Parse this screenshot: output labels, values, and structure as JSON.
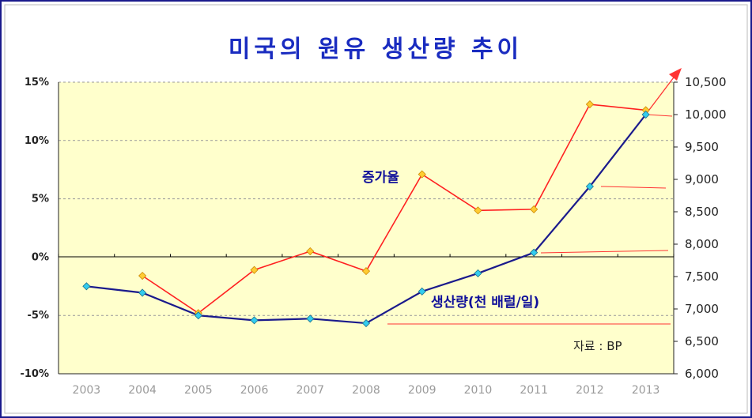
{
  "chart_data": {
    "type": "line",
    "title": "미국의 원유 생산량 추이",
    "categories": [
      "2003",
      "2004",
      "2005",
      "2006",
      "2007",
      "2008",
      "2009",
      "2010",
      "2011",
      "2012",
      "2013"
    ],
    "y_left": {
      "ticks": [
        "15%",
        "10%",
        "5%",
        "0%",
        "-5%",
        "-10%"
      ],
      "ylim": [
        -10,
        15
      ]
    },
    "y_right": {
      "ticks": [
        "10,500",
        "10,000",
        "9,500",
        "9,000",
        "8,500",
        "8,000",
        "7,500",
        "7,000",
        "6,500",
        "6,000"
      ],
      "ylim": [
        6000,
        10500
      ]
    },
    "series": [
      {
        "name": "증가율",
        "axis": "left",
        "color": "#ff2020",
        "marker_color": "#ffcc33",
        "values": [
          null,
          -1.6,
          -4.8,
          -1.1,
          0.5,
          -1.2,
          7.1,
          4.0,
          4.1,
          13.1,
          12.6
        ]
      },
      {
        "name": "생산량(천 배럴/일)",
        "axis": "right",
        "color": "#1a1a8c",
        "marker_color": "#33ccee",
        "values": [
          7350,
          7250,
          6900,
          6825,
          6850,
          6780,
          7270,
          7550,
          7870,
          8890,
          10000
        ]
      }
    ],
    "source": "자료 : BP",
    "grid": true
  }
}
